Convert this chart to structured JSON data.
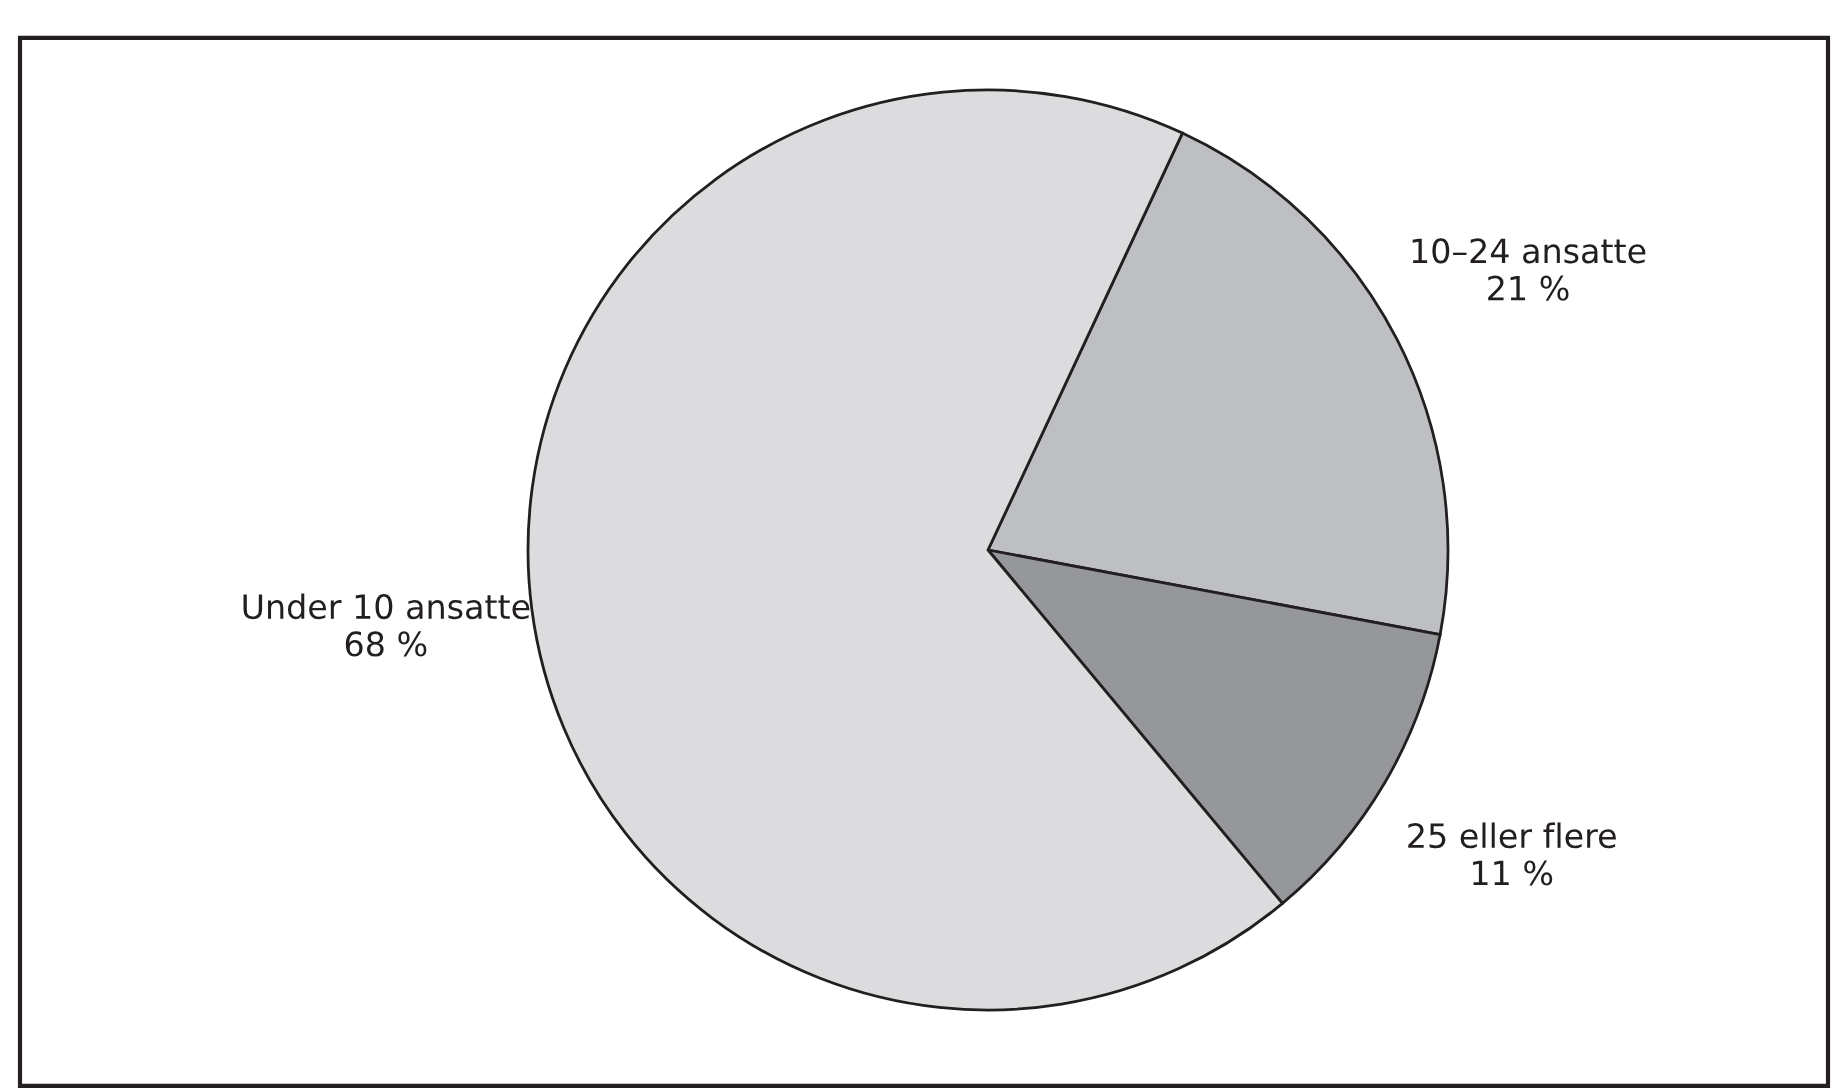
{
  "chart_data": {
    "type": "pie",
    "categories": [
      "10–24 ansatte",
      "25 eller flere",
      "Under 10 ansatte"
    ],
    "values": [
      21,
      11,
      68
    ],
    "colors": [
      "#bebfc3",
      "#96979b",
      "#dcdcde"
    ],
    "value_labels": [
      "21 %",
      "11 %",
      "68 %"
    ]
  }
}
